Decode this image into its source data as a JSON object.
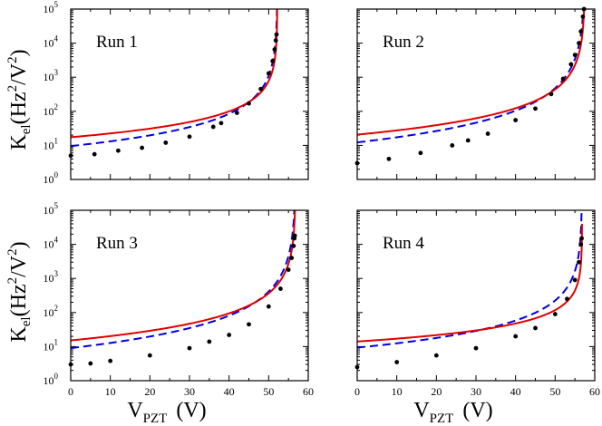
{
  "chart_data": {
    "type": "scatter",
    "layout": "2x2 grid",
    "xlabel_main": "V",
    "xlabel_sub": "PZT",
    "xlabel_unit": "(V)",
    "ylabel_main": "K",
    "ylabel_sub": "el",
    "ylabel_unit": "(Hz",
    "ylabel_exp": "2",
    "ylabel_tail": "/V",
    "ylabel_tail_exp": "2",
    "ylabel_close": ")",
    "xlim": [
      0,
      60
    ],
    "ylim": [
      1,
      100000
    ],
    "yscale": "log",
    "x_ticks": [
      "0",
      "10",
      "20",
      "30",
      "40",
      "50",
      "60"
    ],
    "y_tick_base": "10",
    "y_tick_exps": [
      "0",
      "1",
      "2",
      "3",
      "4",
      "5"
    ],
    "series_styles": {
      "data": "black dots",
      "fit_1": "red solid line",
      "fit_2": "blue dashed line"
    },
    "panels": [
      {
        "label": "Run 1",
        "vc": 52.2,
        "red": {
          "A": 2000,
          "p": 1.2
        },
        "blue": {
          "A": 3600,
          "p": 1.5
        },
        "points": [
          {
            "x": 0,
            "y": 5
          },
          {
            "x": 6,
            "y": 5.5
          },
          {
            "x": 12,
            "y": 7
          },
          {
            "x": 18,
            "y": 8.5
          },
          {
            "x": 24,
            "y": 12
          },
          {
            "x": 30,
            "y": 18
          },
          {
            "x": 36,
            "y": 35
          },
          {
            "x": 38,
            "y": 45
          },
          {
            "x": 42,
            "y": 90
          },
          {
            "x": 45,
            "y": 170
          },
          {
            "x": 48,
            "y": 450
          },
          {
            "x": 50,
            "y": 1300
          },
          {
            "x": 51,
            "y": 3000
          },
          {
            "x": 51.5,
            "y": 6500
          },
          {
            "x": 51.8,
            "y": 12000
          },
          {
            "x": 52,
            "y": 18000
          }
        ]
      },
      {
        "label": "Run 2",
        "vc": 57.5,
        "red": {
          "A": 9000,
          "p": 1.5
        },
        "blue": {
          "A": 18000,
          "p": 1.8
        },
        "points": [
          {
            "x": 0,
            "y": 3
          },
          {
            "x": 8,
            "y": 4
          },
          {
            "x": 16,
            "y": 6
          },
          {
            "x": 24,
            "y": 10
          },
          {
            "x": 28,
            "y": 14
          },
          {
            "x": 33,
            "y": 22
          },
          {
            "x": 40,
            "y": 55
          },
          {
            "x": 45,
            "y": 120
          },
          {
            "x": 49,
            "y": 320
          },
          {
            "x": 52,
            "y": 900
          },
          {
            "x": 54,
            "y": 2400
          },
          {
            "x": 55,
            "y": 4500
          },
          {
            "x": 56,
            "y": 10000
          },
          {
            "x": 56.5,
            "y": 22000
          },
          {
            "x": 57,
            "y": 60000
          },
          {
            "x": 57.3,
            "y": 100000
          }
        ]
      },
      {
        "label": "Run 3",
        "vc": 56.8,
        "red": {
          "A": 6500,
          "p": 1.5
        },
        "blue": {
          "A": 13000,
          "p": 1.8
        },
        "points": [
          {
            "x": 0,
            "y": 3
          },
          {
            "x": 5,
            "y": 3.2
          },
          {
            "x": 10,
            "y": 3.8
          },
          {
            "x": 20,
            "y": 5.5
          },
          {
            "x": 30,
            "y": 9
          },
          {
            "x": 35,
            "y": 14
          },
          {
            "x": 40,
            "y": 22
          },
          {
            "x": 45,
            "y": 45
          },
          {
            "x": 50,
            "y": 150
          },
          {
            "x": 53,
            "y": 500
          },
          {
            "x": 55,
            "y": 1800
          },
          {
            "x": 55.8,
            "y": 4000
          },
          {
            "x": 56.3,
            "y": 9000
          },
          {
            "x": 56.5,
            "y": 15000
          },
          {
            "x": 56.6,
            "y": 18000
          }
        ]
      },
      {
        "label": "Run 4",
        "vc": 56.8,
        "red": {
          "A": 800,
          "p": 1.0
        },
        "blue": {
          "A": 4000,
          "p": 1.5
        },
        "points": [
          {
            "x": 0,
            "y": 2.5
          },
          {
            "x": 10,
            "y": 3.5
          },
          {
            "x": 20,
            "y": 5.5
          },
          {
            "x": 30,
            "y": 9
          },
          {
            "x": 40,
            "y": 20
          },
          {
            "x": 45,
            "y": 35
          },
          {
            "x": 50,
            "y": 90
          },
          {
            "x": 53,
            "y": 250
          },
          {
            "x": 55,
            "y": 900
          },
          {
            "x": 56,
            "y": 3000
          },
          {
            "x": 56.5,
            "y": 10000
          },
          {
            "x": 56.7,
            "y": 15000
          }
        ]
      }
    ]
  }
}
